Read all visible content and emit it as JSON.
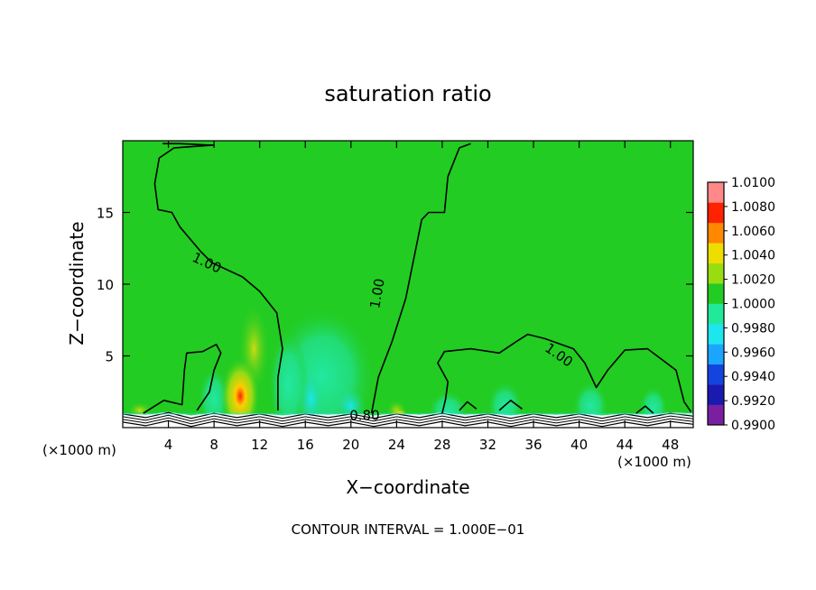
{
  "chart_data": {
    "type": "heatmap",
    "title": "saturation ratio",
    "xlabel": "X−coordinate",
    "ylabel": "Z−coordinate",
    "x_unit_left": "(×1000 m)",
    "x_unit_right": "(×1000 m)",
    "footer": "CONTOUR INTERVAL = 1.000E−01",
    "xlim": [
      0,
      50
    ],
    "ylim": [
      0,
      20
    ],
    "x_ticks": [
      {
        "v": 4,
        "label": "4"
      },
      {
        "v": 8,
        "label": "8"
      },
      {
        "v": 12,
        "label": "12"
      },
      {
        "v": 16,
        "label": "16"
      },
      {
        "v": 20,
        "label": "20"
      },
      {
        "v": 24,
        "label": "24"
      },
      {
        "v": 28,
        "label": "28"
      },
      {
        "v": 32,
        "label": "32"
      },
      {
        "v": 36,
        "label": "36"
      },
      {
        "v": 40,
        "label": "40"
      },
      {
        "v": 44,
        "label": "44"
      },
      {
        "v": 48,
        "label": "48"
      }
    ],
    "y_ticks": [
      {
        "v": 5,
        "label": "5"
      },
      {
        "v": 10,
        "label": "10"
      },
      {
        "v": 15,
        "label": "15"
      }
    ],
    "colorbar": {
      "levels": [
        "0.9900",
        "0.9920",
        "0.9940",
        "0.9960",
        "0.9980",
        "1.0000",
        "1.0020",
        "1.0040",
        "1.0060",
        "1.0080",
        "1.0100"
      ],
      "colors": [
        "#7a1fa2",
        "#1a1ab0",
        "#1444e0",
        "#1aa6ff",
        "#1ee6ee",
        "#22e89a",
        "#22cc22",
        "#99dd11",
        "#eedd00",
        "#ff8800",
        "#ff2200",
        "#ff8888"
      ]
    },
    "contour_labels": [
      {
        "text": "1.00",
        "x": 7.2,
        "y": 11.2,
        "rot": 25
      },
      {
        "text": "1.00",
        "x": 22.7,
        "y": 9.3,
        "rot": -80
      },
      {
        "text": "1.00",
        "x": 38.0,
        "y": 4.8,
        "rot": 35
      },
      {
        "text": "0.80",
        "x": 21.2,
        "y": 0.55,
        "rot": 0
      }
    ],
    "contours": [
      [
        [
          3.5,
          19.8
        ],
        [
          5.0,
          19.8
        ],
        [
          7.5,
          19.7
        ],
        [
          8.0,
          19.7
        ],
        [
          4.5,
          19.5
        ],
        [
          3.2,
          18.8
        ],
        [
          2.8,
          17.0
        ],
        [
          3.1,
          15.2
        ],
        [
          4.3,
          15.0
        ],
        [
          5.0,
          14.0
        ],
        [
          6.8,
          12.3
        ],
        [
          7.8,
          11.5
        ],
        [
          10.5,
          10.5
        ],
        [
          12.0,
          9.5
        ],
        [
          13.5,
          8.0
        ],
        [
          14.0,
          5.5
        ],
        [
          13.6,
          3.5
        ],
        [
          13.6,
          1.2
        ]
      ],
      [
        [
          1.8,
          1.0
        ],
        [
          3.6,
          1.9
        ],
        [
          5.2,
          1.6
        ],
        [
          5.4,
          4.0
        ],
        [
          5.6,
          5.2
        ],
        [
          7.0,
          5.3
        ],
        [
          8.2,
          5.8
        ],
        [
          8.6,
          5.2
        ],
        [
          8.0,
          4.0
        ],
        [
          7.6,
          2.5
        ],
        [
          6.5,
          1.2
        ]
      ],
      [
        [
          21.8,
          1.0
        ],
        [
          22.4,
          3.5
        ],
        [
          23.6,
          6.0
        ],
        [
          24.8,
          9.0
        ],
        [
          26.2,
          14.5
        ],
        [
          26.8,
          15.0
        ],
        [
          28.2,
          15.0
        ],
        [
          28.5,
          17.5
        ],
        [
          29.5,
          19.5
        ],
        [
          30.5,
          19.8
        ]
      ],
      [
        [
          28.0,
          1.0
        ],
        [
          28.3,
          2.0
        ],
        [
          28.5,
          3.2
        ],
        [
          27.6,
          4.5
        ],
        [
          28.2,
          5.3
        ],
        [
          30.5,
          5.5
        ],
        [
          33.0,
          5.2
        ],
        [
          34.5,
          6.0
        ],
        [
          35.5,
          6.5
        ],
        [
          37.0,
          6.2
        ],
        [
          39.5,
          5.5
        ],
        [
          40.5,
          4.5
        ],
        [
          41.5,
          2.8
        ],
        [
          42.5,
          4.0
        ],
        [
          44.0,
          5.4
        ],
        [
          46.0,
          5.5
        ],
        [
          48.5,
          4.0
        ],
        [
          49.2,
          1.8
        ],
        [
          49.8,
          1.1
        ]
      ],
      [
        [
          29.5,
          1.2
        ],
        [
          30.2,
          1.8
        ],
        [
          31.0,
          1.3
        ]
      ],
      [
        [
          33.0,
          1.2
        ],
        [
          34.0,
          1.9
        ],
        [
          35.0,
          1.3
        ]
      ],
      [
        [
          45.0,
          1.0
        ],
        [
          45.8,
          1.5
        ],
        [
          46.5,
          1.0
        ]
      ]
    ]
  }
}
